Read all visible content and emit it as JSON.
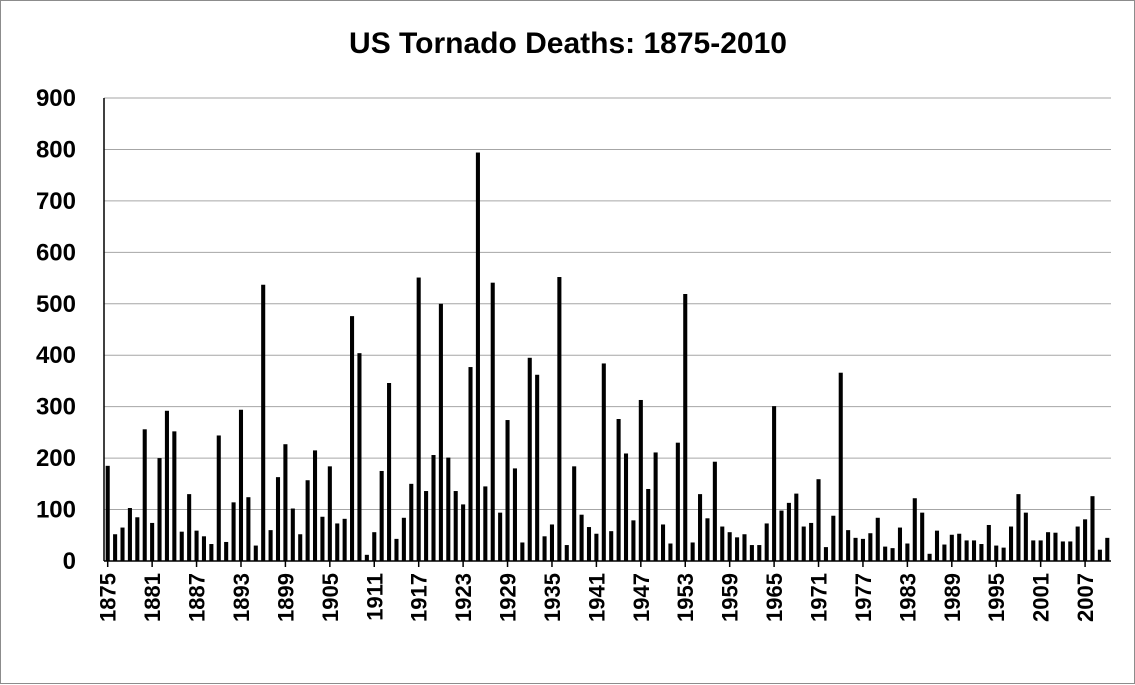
{
  "chart_data": {
    "type": "bar",
    "title": "US Tornado Deaths: 1875-2010",
    "xlabel": "",
    "ylabel": "",
    "ylim": [
      0,
      900
    ],
    "yticks": [
      0,
      100,
      200,
      300,
      400,
      500,
      600,
      700,
      800,
      900
    ],
    "grid": true,
    "bar_color": "#000000",
    "grid_color": "#a6a6a6",
    "x_tick_labels": [
      "1875",
      "1881",
      "1887",
      "1893",
      "1899",
      "1905",
      "1911",
      "1917",
      "1923",
      "1929",
      "1935",
      "1941",
      "1947",
      "1953",
      "1959",
      "1965",
      "1971",
      "1977",
      "1983",
      "1989",
      "1995",
      "2001",
      "2007"
    ],
    "start_year": 1875,
    "end_year": 2010,
    "values": [
      185,
      52,
      65,
      103,
      85,
      256,
      74,
      200,
      292,
      252,
      57,
      130,
      59,
      48,
      33,
      244,
      37,
      114,
      294,
      124,
      30,
      537,
      60,
      163,
      227,
      102,
      52,
      157,
      215,
      86,
      184,
      73,
      82,
      476,
      404,
      12,
      56,
      175,
      346,
      43,
      84,
      150,
      551,
      136,
      206,
      500,
      201,
      136,
      110,
      377,
      794,
      145,
      541,
      94,
      274,
      180,
      36,
      395,
      362,
      48,
      71,
      552,
      31,
      184,
      90,
      66,
      53,
      384,
      58,
      276,
      209,
      79,
      313,
      140,
      211,
      71,
      34,
      230,
      519,
      36,
      130,
      83,
      193,
      67,
      56,
      46,
      52,
      31,
      31,
      73,
      301,
      98,
      113,
      131,
      67,
      74,
      159,
      27,
      88,
      366,
      60,
      45,
      43,
      54,
      84,
      28,
      25,
      65,
      34,
      122,
      94,
      14,
      59,
      32,
      51,
      53,
      40,
      40,
      33,
      70,
      30,
      26,
      67,
      130,
      94,
      40,
      40,
      56,
      55,
      38,
      38,
      67,
      81,
      126,
      22,
      45
    ]
  }
}
